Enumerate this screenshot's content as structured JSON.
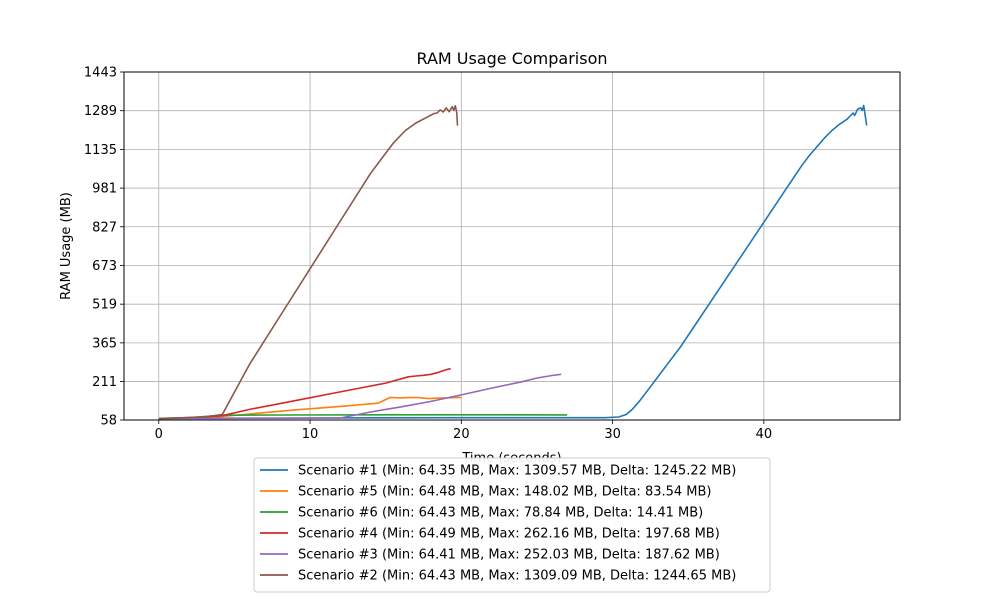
{
  "chart_data": {
    "type": "line",
    "title": "RAM Usage Comparison",
    "xlabel": "Time (seconds)",
    "ylabel": "RAM Usage (MB)",
    "xlim": [
      -2.3,
      49.0
    ],
    "ylim": [
      58,
      1443
    ],
    "xticks": [
      0,
      10,
      20,
      30,
      40
    ],
    "yticks": [
      58,
      211,
      365,
      519,
      673,
      827,
      981,
      1135,
      1289,
      1443
    ],
    "grid": true,
    "legend_position": "below-plot",
    "series": [
      {
        "name": "Scenario #1 (Min: 64.35 MB, Max: 1309.57 MB, Delta: 1245.22 MB)",
        "color": "#1f77b4",
        "points": [
          [
            0,
            64.4
          ],
          [
            5,
            65
          ],
          [
            10,
            66
          ],
          [
            20,
            67
          ],
          [
            29.5,
            67
          ],
          [
            30.4,
            70
          ],
          [
            30.9,
            80
          ],
          [
            31.3,
            100
          ],
          [
            31.8,
            135
          ],
          [
            32.5,
            190
          ],
          [
            33.5,
            270
          ],
          [
            34.5,
            350
          ],
          [
            35.5,
            440
          ],
          [
            36.5,
            530
          ],
          [
            37.5,
            620
          ],
          [
            38.5,
            710
          ],
          [
            39.5,
            800
          ],
          [
            40.5,
            890
          ],
          [
            41.5,
            980
          ],
          [
            42.5,
            1070
          ],
          [
            43.0,
            1110
          ],
          [
            43.5,
            1145
          ],
          [
            44.0,
            1180
          ],
          [
            44.5,
            1210
          ],
          [
            45.0,
            1235
          ],
          [
            45.5,
            1255
          ],
          [
            45.9,
            1280
          ],
          [
            46.0,
            1270
          ],
          [
            46.2,
            1295
          ],
          [
            46.4,
            1300
          ],
          [
            46.5,
            1290
          ],
          [
            46.6,
            1309.6
          ],
          [
            46.8,
            1230
          ]
        ]
      },
      {
        "name": "Scenario #5 (Min: 64.48 MB, Max: 148.02 MB, Delta: 83.54 MB)",
        "color": "#ff7f0e",
        "points": [
          [
            0,
            64.5
          ],
          [
            1,
            65
          ],
          [
            3,
            68
          ],
          [
            4.2,
            72
          ],
          [
            6,
            82
          ],
          [
            9,
            98
          ],
          [
            12,
            112
          ],
          [
            14.5,
            125
          ],
          [
            15.3,
            148
          ],
          [
            16,
            146
          ],
          [
            16.5,
            147
          ],
          [
            17.2,
            147
          ],
          [
            17.8,
            143
          ],
          [
            18.5,
            145
          ],
          [
            19,
            146
          ],
          [
            19.5,
            147
          ],
          [
            20,
            148
          ]
        ]
      },
      {
        "name": "Scenario #6 (Min: 64.43 MB, Max: 78.84 MB, Delta: 14.41 MB)",
        "color": "#2ca02c",
        "points": [
          [
            0,
            64.4
          ],
          [
            1,
            66
          ],
          [
            2,
            68
          ],
          [
            3,
            72
          ],
          [
            4.2,
            77
          ],
          [
            8,
            78
          ],
          [
            15,
            78.5
          ],
          [
            20,
            78.8
          ],
          [
            27,
            78.3
          ]
        ]
      },
      {
        "name": "Scenario #4 (Min: 64.49 MB, Max: 262.16 MB, Delta: 197.68 MB)",
        "color": "#d62728",
        "points": [
          [
            0,
            64.5
          ],
          [
            1,
            65
          ],
          [
            3,
            70
          ],
          [
            4.2,
            75
          ],
          [
            6,
            100
          ],
          [
            9,
            135
          ],
          [
            12,
            170
          ],
          [
            15,
            205
          ],
          [
            16.5,
            230
          ],
          [
            17,
            233
          ],
          [
            17.5,
            236
          ],
          [
            18,
            240
          ],
          [
            18.5,
            248
          ],
          [
            19,
            258
          ],
          [
            19.3,
            262
          ]
        ]
      },
      {
        "name": "Scenario #3 (Min: 64.41 MB, Max: 252.03 MB, Delta: 187.62 MB)",
        "color": "#9467bd",
        "points": [
          [
            0,
            64.4
          ],
          [
            4,
            64.5
          ],
          [
            8,
            64.8
          ],
          [
            12,
            66
          ],
          [
            14,
            90
          ],
          [
            16,
            110
          ],
          [
            18,
            132
          ],
          [
            20,
            158
          ],
          [
            22,
            185
          ],
          [
            24,
            210
          ],
          [
            25,
            225
          ],
          [
            26,
            235
          ],
          [
            26.6,
            240
          ]
        ]
      },
      {
        "name": "Scenario #2 (Min: 64.43 MB, Max: 1309.09 MB, Delta: 1244.65 MB)",
        "color": "#8c564b",
        "points": [
          [
            0,
            64.4
          ],
          [
            1,
            66
          ],
          [
            2,
            68
          ],
          [
            3,
            70
          ],
          [
            4.2,
            80
          ],
          [
            6,
            280
          ],
          [
            8,
            470
          ],
          [
            10,
            660
          ],
          [
            12,
            850
          ],
          [
            14,
            1040
          ],
          [
            15.5,
            1160
          ],
          [
            16.3,
            1210
          ],
          [
            17,
            1240
          ],
          [
            17.8,
            1265
          ],
          [
            18.2,
            1278
          ],
          [
            18.4,
            1280
          ],
          [
            18.6,
            1292
          ],
          [
            18.8,
            1284
          ],
          [
            19.0,
            1300
          ],
          [
            19.2,
            1285
          ],
          [
            19.4,
            1305
          ],
          [
            19.5,
            1290
          ],
          [
            19.6,
            1309
          ],
          [
            19.7,
            1280
          ],
          [
            19.75,
            1230
          ]
        ]
      }
    ]
  }
}
